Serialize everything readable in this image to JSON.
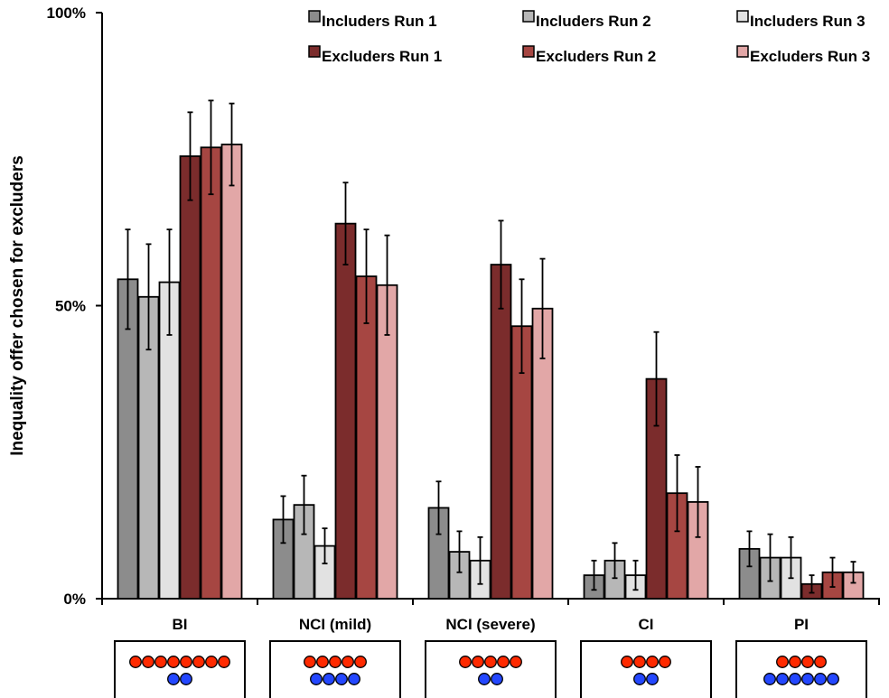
{
  "chart_data": {
    "type": "bar",
    "title": "",
    "xlabel": "",
    "ylabel": "Inequality offer chosen for excluders",
    "ylim": [
      0,
      100
    ],
    "y_ticks": [
      {
        "value": 0,
        "label": "0%"
      },
      {
        "value": 50,
        "label": "50%"
      },
      {
        "value": 100,
        "label": "100%"
      }
    ],
    "grid": false,
    "legend_position": "top-right",
    "categories": [
      "BI",
      "NCI (mild)",
      "NCI (severe)",
      "CI",
      "PI"
    ],
    "series": [
      {
        "name": "Includers Run 1",
        "color": "#8c8c8c",
        "values": [
          54.5,
          13.5,
          15.5,
          4.0,
          8.5
        ],
        "errors": [
          8.5,
          4.0,
          4.5,
          2.5,
          3.0
        ]
      },
      {
        "name": "Includers Run 2",
        "color": "#b7b7b7",
        "values": [
          51.5,
          16.0,
          8.0,
          6.5,
          7.0
        ],
        "errors": [
          9.0,
          5.0,
          3.5,
          3.0,
          4.0
        ]
      },
      {
        "name": "Includers Run 3",
        "color": "#e2e2e2",
        "values": [
          54.0,
          9.0,
          6.5,
          4.0,
          7.0
        ],
        "errors": [
          9.0,
          3.0,
          4.0,
          2.5,
          3.5
        ]
      },
      {
        "name": "Excluders Run 1",
        "color": "#7b2c2c",
        "values": [
          75.5,
          64.0,
          57.0,
          37.5,
          2.5
        ],
        "errors": [
          7.5,
          7.0,
          7.5,
          8.0,
          1.5
        ]
      },
      {
        "name": "Excluders Run 2",
        "color": "#a64642",
        "values": [
          77.0,
          55.0,
          46.5,
          18.0,
          4.5
        ],
        "errors": [
          8.0,
          8.0,
          8.0,
          6.5,
          2.5
        ]
      },
      {
        "name": "Excluders Run 3",
        "color": "#e2a7a7",
        "values": [
          77.5,
          53.5,
          49.5,
          16.5,
          4.5
        ],
        "errors": [
          7.0,
          8.5,
          8.5,
          6.0,
          1.8
        ]
      }
    ],
    "token_colors": {
      "red": "#ff2a00",
      "blue": "#2447ff"
    },
    "offer_diagrams": [
      {
        "category": "BI",
        "red_count": 8,
        "blue_count": 2
      },
      {
        "category": "NCI (mild)",
        "red_count": 5,
        "blue_count": 4
      },
      {
        "category": "NCI (severe)",
        "red_count": 5,
        "blue_count": 2
      },
      {
        "category": "CI",
        "red_count": 4,
        "blue_count": 2
      },
      {
        "category": "PI",
        "red_count": 4,
        "blue_count": 6
      }
    ]
  }
}
